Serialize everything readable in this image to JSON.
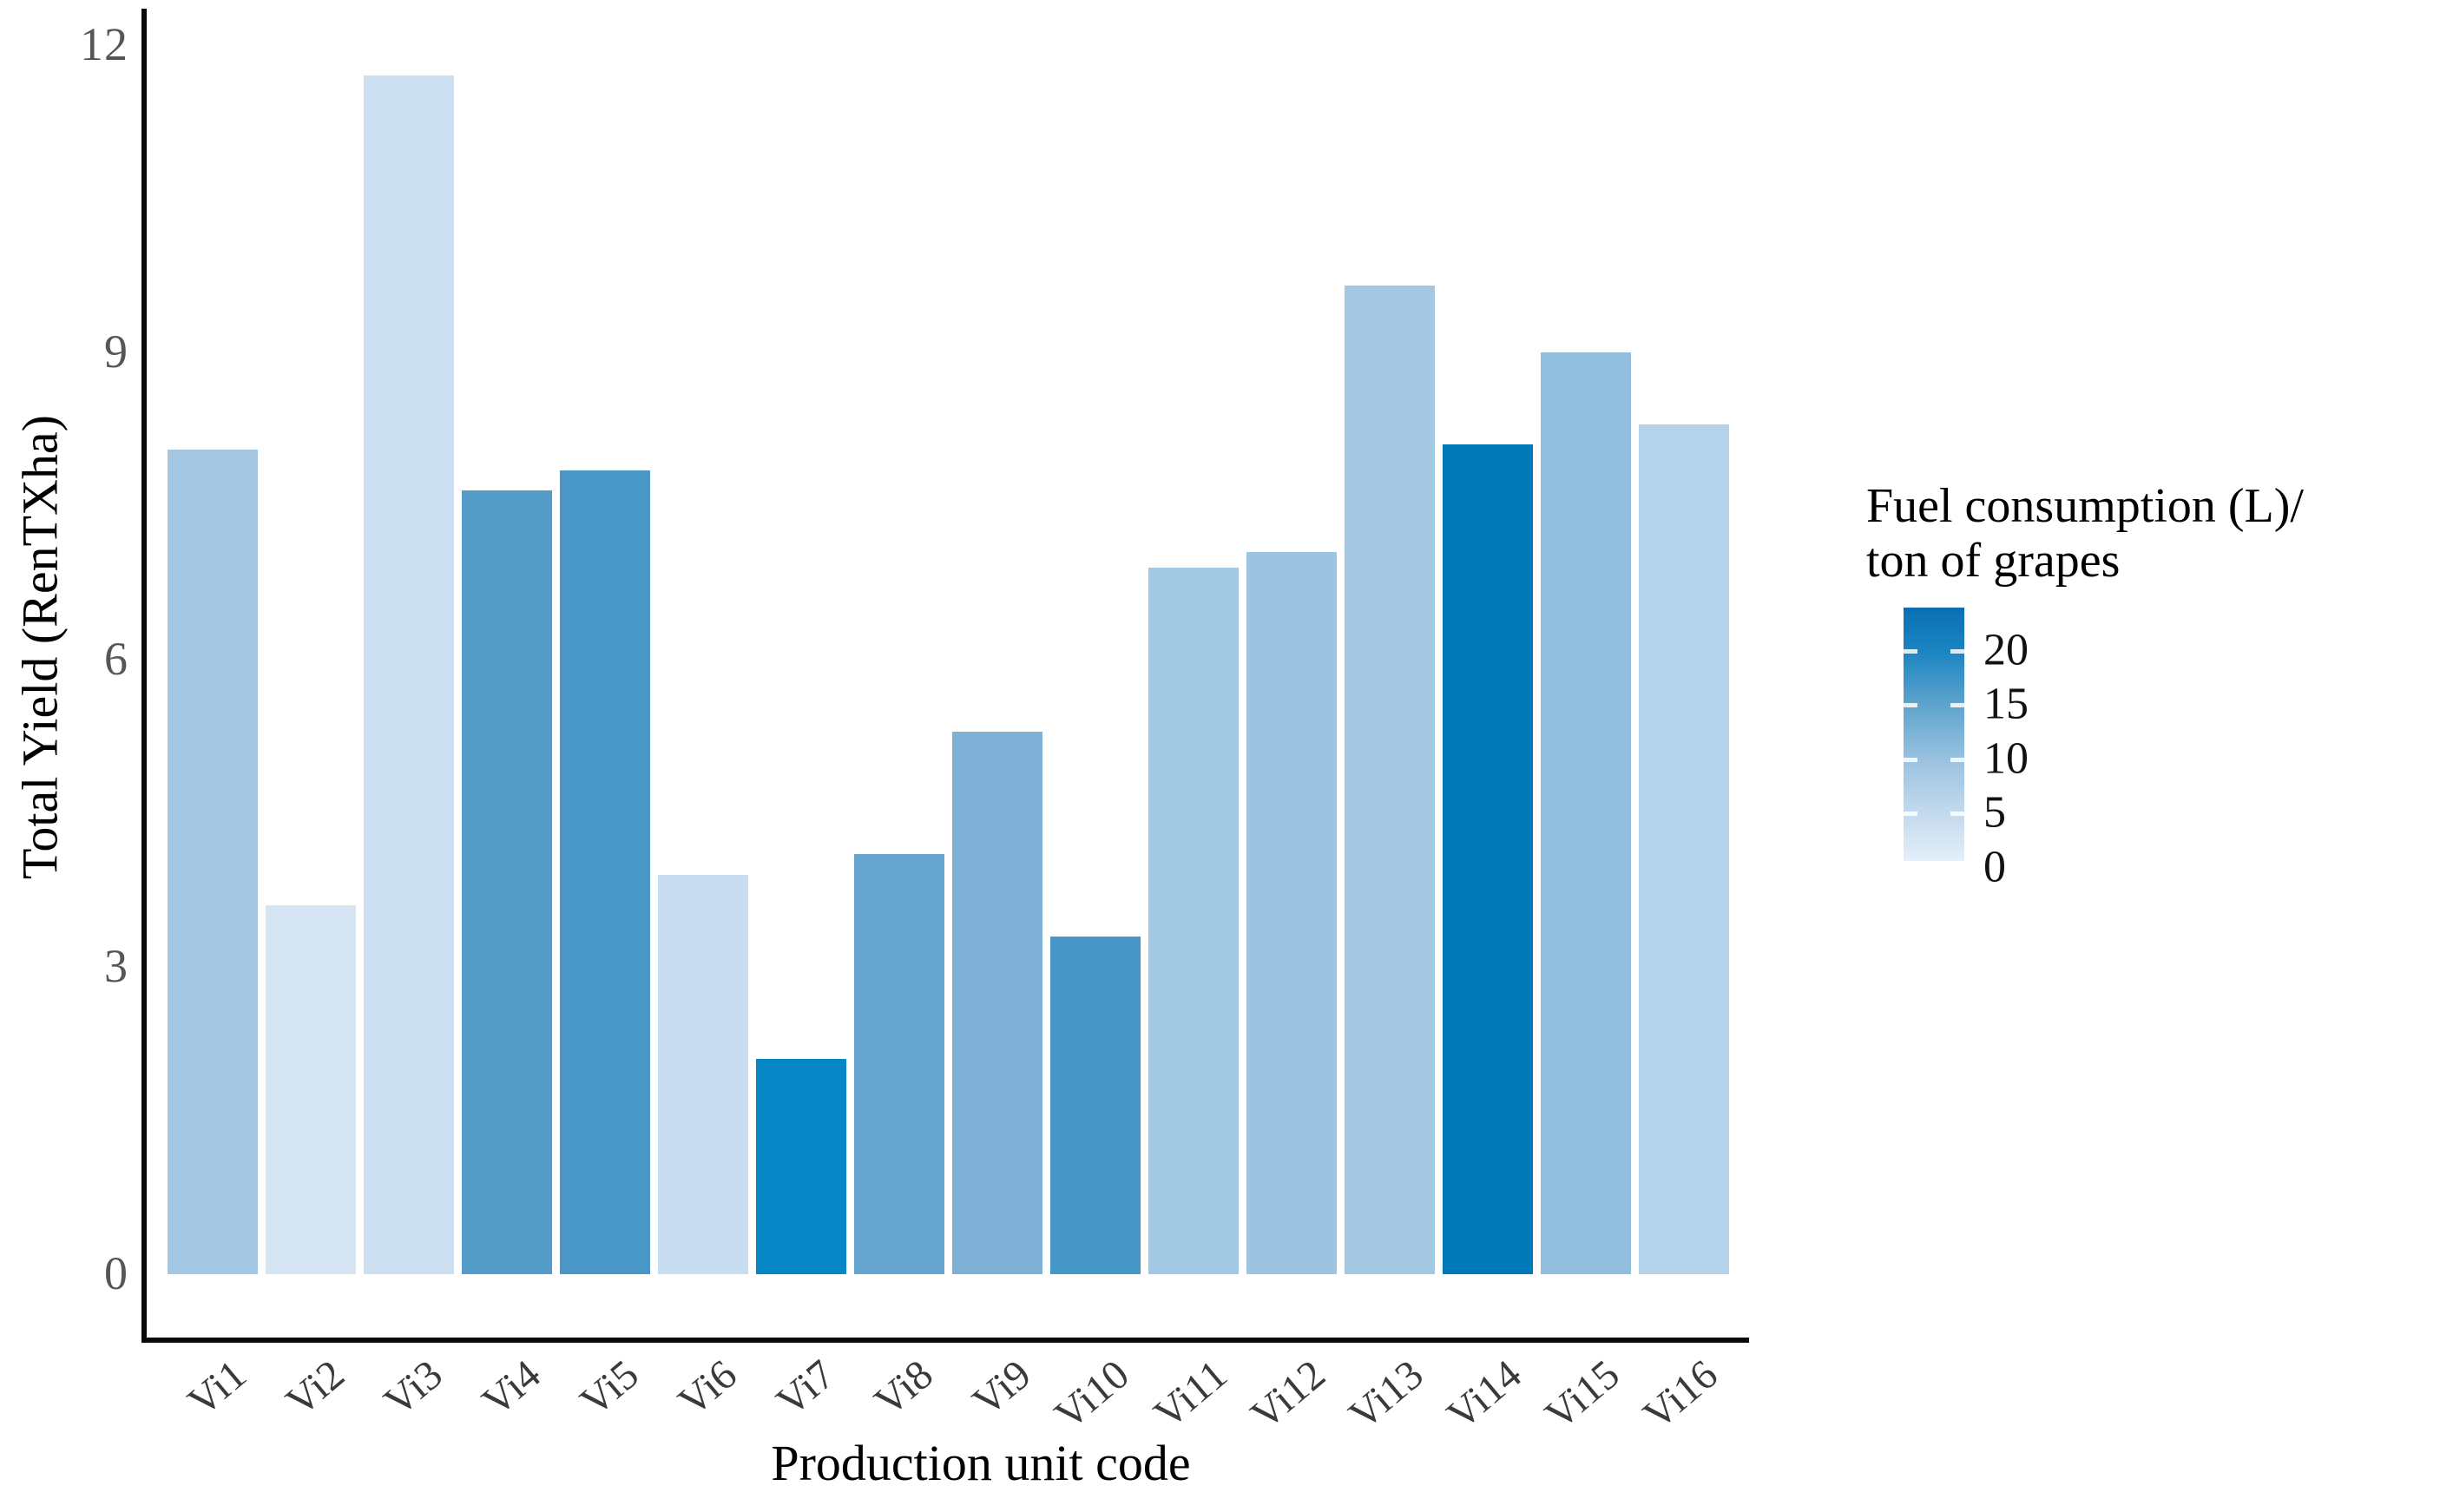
{
  "figure": {
    "y_axis": {
      "title": "Total Yield (RenTXha)",
      "ticks": [
        0,
        3,
        6,
        9,
        12
      ]
    },
    "x_axis": {
      "title": "Production unit code"
    },
    "legend": {
      "title_line1": "Fuel consumption (L)/",
      "title_line2": "ton of grapes",
      "tick_labels": [
        20,
        15,
        10,
        5,
        0
      ],
      "gradient_top_color": "#0a6fb2",
      "gradient_bottom_color": "#e4eff9"
    }
  },
  "chart_data": {
    "type": "bar",
    "title": "",
    "xlabel": "Production unit code",
    "ylabel": "Total Yield (RenTXha)",
    "ylim": [
      0,
      12.3
    ],
    "grid": "off",
    "legend_position": "right",
    "color_encoding_label": "Fuel consumption (L)/ton of grapes",
    "color_scale_ticks": [
      0,
      5,
      10,
      15,
      20
    ],
    "categories": [
      "Vi1",
      "Vi2",
      "Vi3",
      "Vi4",
      "Vi5",
      "Vi6",
      "Vi7",
      "Vi8",
      "Vi9",
      "Vi10",
      "Vi11",
      "Vi12",
      "Vi13",
      "Vi14",
      "Vi15",
      "Vi16"
    ],
    "values": [
      8.05,
      3.6,
      11.7,
      7.65,
      7.85,
      3.9,
      2.1,
      4.1,
      5.3,
      3.3,
      6.9,
      7.05,
      9.65,
      8.1,
      9.0,
      8.3
    ],
    "fuel_values_approx": [
      6,
      1.5,
      2.5,
      13,
      14,
      3,
      20,
      11.5,
      9.5,
      14.5,
      6,
      7,
      6,
      23,
      8,
      4.5
    ],
    "bar_colors": [
      "#a3c7e2",
      "#d6e5f4",
      "#cbdff1",
      "#559dc9",
      "#4997c6",
      "#c8ddef",
      "#0787c5",
      "#64a4cf",
      "#7fb1d6",
      "#4697c8",
      "#a2c8e3",
      "#9cc3e0",
      "#a4c8e2",
      "#0079b8",
      "#92bedd",
      "#b4d2ea"
    ]
  }
}
